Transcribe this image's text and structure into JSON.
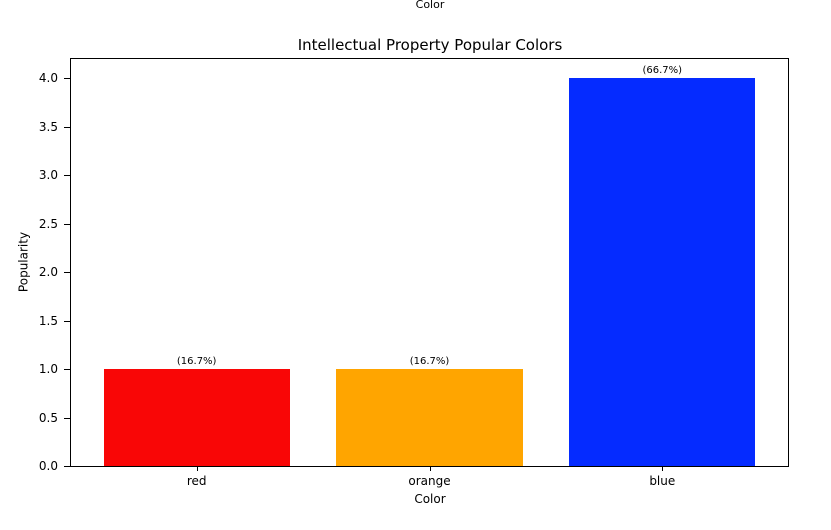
{
  "figure": {
    "top_text": "Color"
  },
  "chart_data": {
    "type": "bar",
    "title": "Intellectual Property Popular Colors",
    "xlabel": "Color",
    "ylabel": "Popularity",
    "categories": [
      "red",
      "orange",
      "blue"
    ],
    "values": [
      1,
      1,
      4
    ],
    "bar_colors": [
      "#f90606",
      "#ffa500",
      "#052bff"
    ],
    "bar_labels": [
      "(16.7%)",
      "(16.7%)",
      "(66.7%)"
    ],
    "percentages": [
      16.7,
      16.7,
      66.7
    ],
    "yticks": [
      0,
      0.5,
      1,
      1.5,
      2,
      2.5,
      3,
      3.5,
      4
    ],
    "ylim": [
      0,
      4.2
    ],
    "bar_width_ratio": 0.8,
    "grid": false,
    "legend": "none"
  }
}
